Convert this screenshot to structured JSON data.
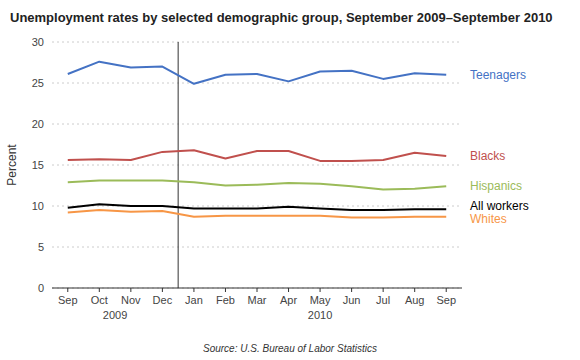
{
  "chart_data": {
    "type": "line",
    "title": "Unemployment rates by selected demographic group, September 2009–September 2010",
    "y_label": "Percent",
    "source": "Source: U.S. Bureau of Labor Statistics",
    "categories": [
      "Sep",
      "Oct",
      "Nov",
      "Dec",
      "Jan",
      "Feb",
      "Mar",
      "Apr",
      "May",
      "Jun",
      "Jul",
      "Aug",
      "Sep"
    ],
    "series": [
      {
        "name": "Teenagers",
        "color": "#4472C4",
        "values": [
          26.1,
          27.6,
          26.9,
          27.0,
          24.9,
          26.0,
          26.1,
          25.2,
          26.4,
          26.5,
          25.5,
          26.2,
          26.0
        ]
      },
      {
        "name": "Blacks",
        "color": "#C0504D",
        "values": [
          15.6,
          15.7,
          15.6,
          16.6,
          16.8,
          15.8,
          16.7,
          16.7,
          15.5,
          15.5,
          15.6,
          16.5,
          16.1
        ]
      },
      {
        "name": "Hispanics",
        "color": "#9BBB59",
        "values": [
          12.9,
          13.1,
          13.1,
          13.1,
          12.9,
          12.5,
          12.6,
          12.8,
          12.7,
          12.4,
          12.0,
          12.1,
          12.4
        ]
      },
      {
        "name": "All workers",
        "color": "#000000",
        "values": [
          9.8,
          10.2,
          10.0,
          10.0,
          9.7,
          9.7,
          9.7,
          9.9,
          9.7,
          9.5,
          9.5,
          9.6,
          9.6
        ]
      },
      {
        "name": "Whites",
        "color": "#F79646",
        "values": [
          9.2,
          9.5,
          9.3,
          9.4,
          8.7,
          8.8,
          8.8,
          8.8,
          8.8,
          8.6,
          8.6,
          8.7,
          8.7
        ]
      }
    ],
    "annotations": [
      {
        "text": "2009",
        "span": [
          0,
          3
        ]
      },
      {
        "text": "2010",
        "span": [
          4,
          12
        ]
      }
    ],
    "ylim": [
      0,
      30
    ],
    "yticks": [
      0,
      5,
      10,
      15,
      20,
      25,
      30
    ],
    "grid": true
  }
}
